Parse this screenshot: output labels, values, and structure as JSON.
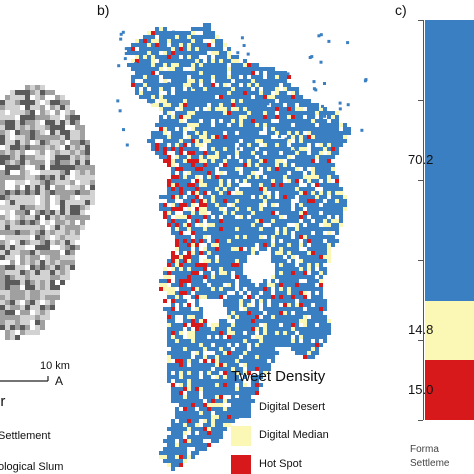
{
  "panel_a": {
    "scale_label": "10 km",
    "north_symbol": "A",
    "legend_title": "er",
    "legend_items": [
      "Settlement",
      "ological Slum"
    ],
    "colors": {
      "light": "#d2d2d2",
      "mid": "#a0a0a0",
      "dark": "#5a5a5a"
    }
  },
  "panel_b": {
    "letter": "b)",
    "legend_title": "Tweet Density",
    "legend_items": [
      {
        "label": "Digital Desert",
        "color": "#3a7fc1"
      },
      {
        "label": "Digital Median",
        "color": "#fbf7b5"
      },
      {
        "label": "Hot Spot",
        "color": "#d7191c"
      }
    ]
  },
  "panel_c": {
    "letter": "c)",
    "chart_data": {
      "type": "bar",
      "categories": [
        "Forma Settleme"
      ],
      "series": [
        {
          "name": "Digital Desert",
          "values": [
            70.2
          ],
          "label": "70.2",
          "color": "#3a7fc1"
        },
        {
          "name": "Digital Median",
          "values": [
            14.8
          ],
          "label": "14.8",
          "color": "#fbf7b5"
        },
        {
          "name": "Hot Spot",
          "values": [
            15.0
          ],
          "label": "15.0",
          "color": "#d7191c"
        }
      ],
      "stacked": true,
      "ylim": [
        0,
        100
      ],
      "ticks": [
        0,
        20,
        40,
        60,
        80,
        100
      ],
      "grid": false
    },
    "x_category_lines": [
      "Forma",
      "Settleme"
    ]
  }
}
